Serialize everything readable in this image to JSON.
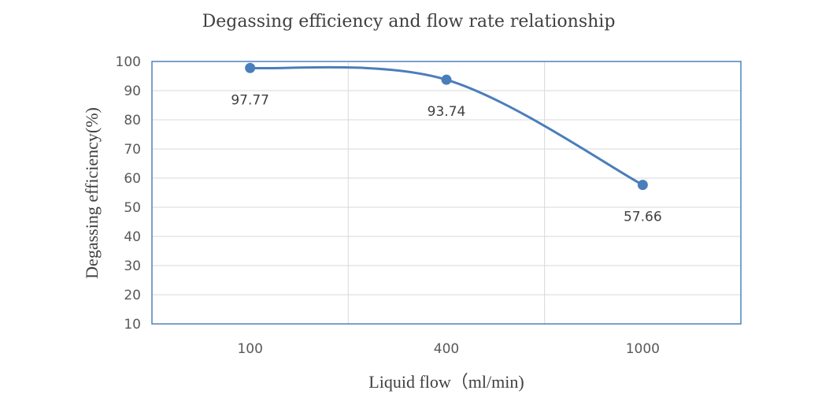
{
  "chart_data": {
    "type": "line",
    "title": "Degassing efficiency and flow rate relationship",
    "xlabel": "Liquid flow（ml/min)",
    "ylabel": "Degassing efficiency(%)",
    "categories": [
      "100",
      "400",
      "1000"
    ],
    "series": [
      {
        "values": [
          97.77,
          93.74,
          57.66
        ],
        "data_labels": [
          "97.77",
          "93.74",
          "57.66"
        ]
      }
    ],
    "ylim": [
      10,
      100
    ],
    "yticks": [
      "10",
      "20",
      "30",
      "40",
      "50",
      "60",
      "70",
      "80",
      "90",
      "100"
    ],
    "grid": true,
    "smooth": true,
    "colors": {
      "series": "#4a7ebb",
      "frame": "#4f81bd",
      "grid": "#d9d9d9"
    }
  }
}
